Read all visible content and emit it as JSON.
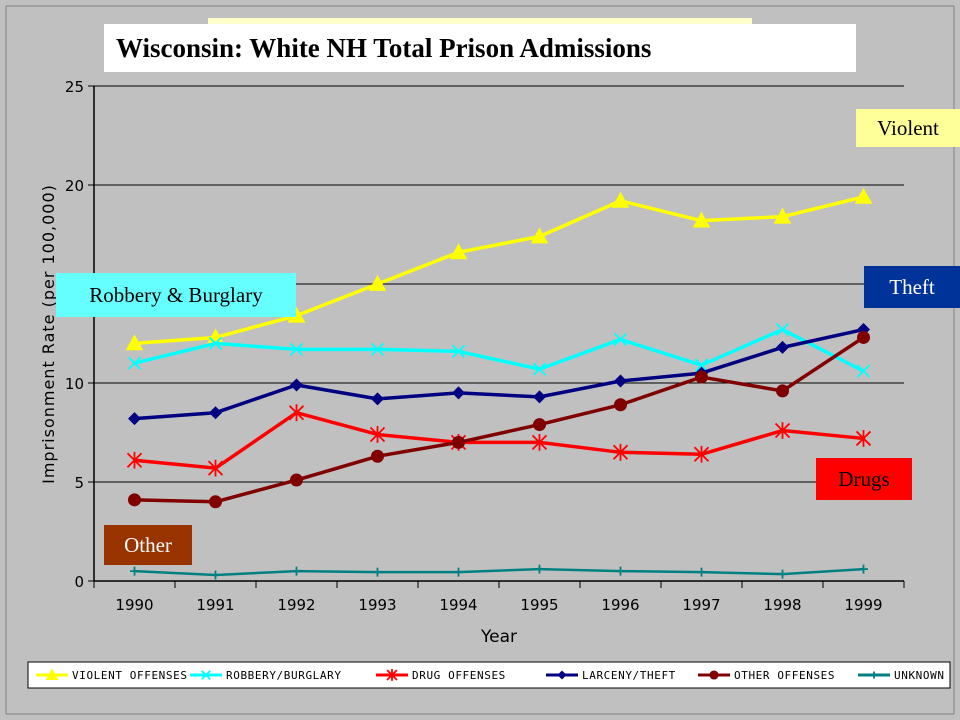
{
  "title": "Wisconsin: White NH Total Prison Admissions",
  "callouts": {
    "violent": "Violent",
    "robbery": "Robbery & Burglary",
    "theft": "Theft",
    "drugs": "Drugs",
    "other": "Other"
  },
  "chart_data": {
    "type": "line",
    "x": [
      1990,
      1991,
      1992,
      1993,
      1994,
      1995,
      1996,
      1997,
      1998,
      1999
    ],
    "xlabel": "Year",
    "ylabel": "Imprisonment Rate (per 100,000)",
    "ylim": [
      0,
      25
    ],
    "yticks": [
      0,
      5,
      10,
      15,
      20,
      25
    ],
    "grid": "horizontal",
    "legend": "bottom",
    "series": [
      {
        "name": "VIOLENT OFFENSES",
        "color": "#ffff00",
        "marker": "triangle",
        "values": [
          12.0,
          12.3,
          13.4,
          15.0,
          16.6,
          17.4,
          19.2,
          18.2,
          18.4,
          19.4
        ]
      },
      {
        "name": "ROBBERY/BURGLARY",
        "color": "#00ffff",
        "marker": "x",
        "values": [
          11.0,
          12.0,
          11.7,
          11.7,
          11.6,
          10.7,
          12.2,
          10.9,
          12.7,
          10.6
        ]
      },
      {
        "name": "DRUG OFFENSES",
        "color": "#ff0000",
        "marker": "star",
        "values": [
          6.1,
          5.7,
          8.5,
          7.4,
          7.0,
          7.0,
          6.5,
          6.4,
          7.6,
          7.2
        ]
      },
      {
        "name": "LARCENY/THEFT",
        "color": "#000080",
        "marker": "diamond",
        "values": [
          8.2,
          8.5,
          9.9,
          9.2,
          9.5,
          9.3,
          10.1,
          10.5,
          11.8,
          12.7
        ]
      },
      {
        "name": "OTHER OFFENSES",
        "color": "#800000",
        "marker": "circle",
        "values": [
          4.1,
          4.0,
          5.1,
          6.3,
          7.0,
          7.9,
          8.9,
          10.3,
          9.6,
          12.3
        ]
      },
      {
        "name": "UNKNOWN",
        "color": "#008080",
        "marker": "plus",
        "values": [
          0.5,
          0.3,
          0.5,
          0.45,
          0.45,
          0.6,
          0.5,
          0.45,
          0.35,
          0.6
        ]
      }
    ]
  }
}
